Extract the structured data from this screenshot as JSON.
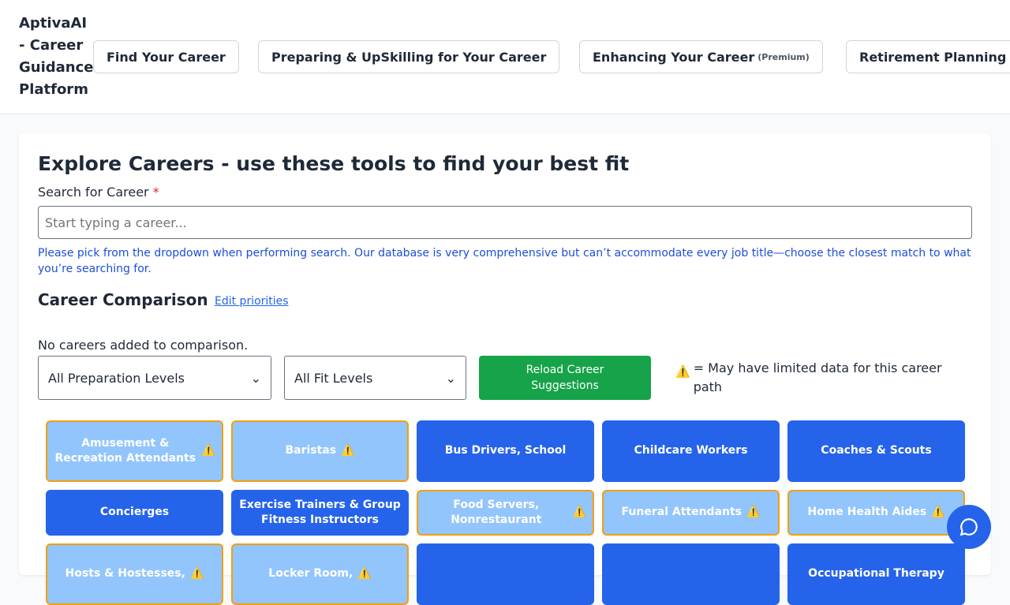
{
  "header": {
    "brand": "AptivaAI - Career Guidance Platform",
    "nav": [
      {
        "label": "Find Your Career"
      },
      {
        "label": "Preparing & UpSkilling for Your Career"
      },
      {
        "label": "Enhancing Your Career",
        "badge": "(Premium)"
      },
      {
        "label": "Retirement Planning"
      }
    ]
  },
  "main": {
    "title": "Explore Careers - use these tools to find your best fit",
    "search_label": "Search for Career",
    "required": "*",
    "search_placeholder": "Start typing a career...",
    "hint": "Please pick from the dropdown when performing search. Our database is very comprehensive but can’t accommodate every job title—choose the closest match to what you’re searching for.",
    "comparison_title": "Career Comparison",
    "edit_priorities": "Edit priorities",
    "no_careers": "No careers added to comparison.",
    "prep_select": "All Preparation Levels",
    "fit_select": "All Fit Levels",
    "reload": "Reload Career Suggestions",
    "warning_icon": "⚠️",
    "legend": "= May have limited data for this career path",
    "colors": {
      "primary": "#2563eb",
      "limited": "#93c5fd",
      "warning_border": "#f59e0b",
      "reload": "#16a34a"
    },
    "careers": [
      {
        "name": "Amusement & Recreation Attendants",
        "limited": true
      },
      {
        "name": "Baristas",
        "limited": true
      },
      {
        "name": "Bus Drivers, School",
        "limited": false
      },
      {
        "name": "Childcare Workers",
        "limited": false
      },
      {
        "name": "Coaches & Scouts",
        "limited": false
      },
      {
        "name": "Concierges",
        "limited": false
      },
      {
        "name": "Exercise Trainers & Group Fitness Instructors",
        "limited": false
      },
      {
        "name": "Food Servers, Nonrestaurant",
        "limited": true
      },
      {
        "name": "Funeral Attendants",
        "limited": true
      },
      {
        "name": "Home Health Aides",
        "limited": true
      },
      {
        "name": "Hosts & Hostesses,",
        "limited": true
      },
      {
        "name": "Locker Room,",
        "limited": true
      },
      {
        "name": "",
        "limited": false
      },
      {
        "name": "",
        "limited": false
      },
      {
        "name": "Occupational Therapy",
        "limited": false
      }
    ]
  }
}
